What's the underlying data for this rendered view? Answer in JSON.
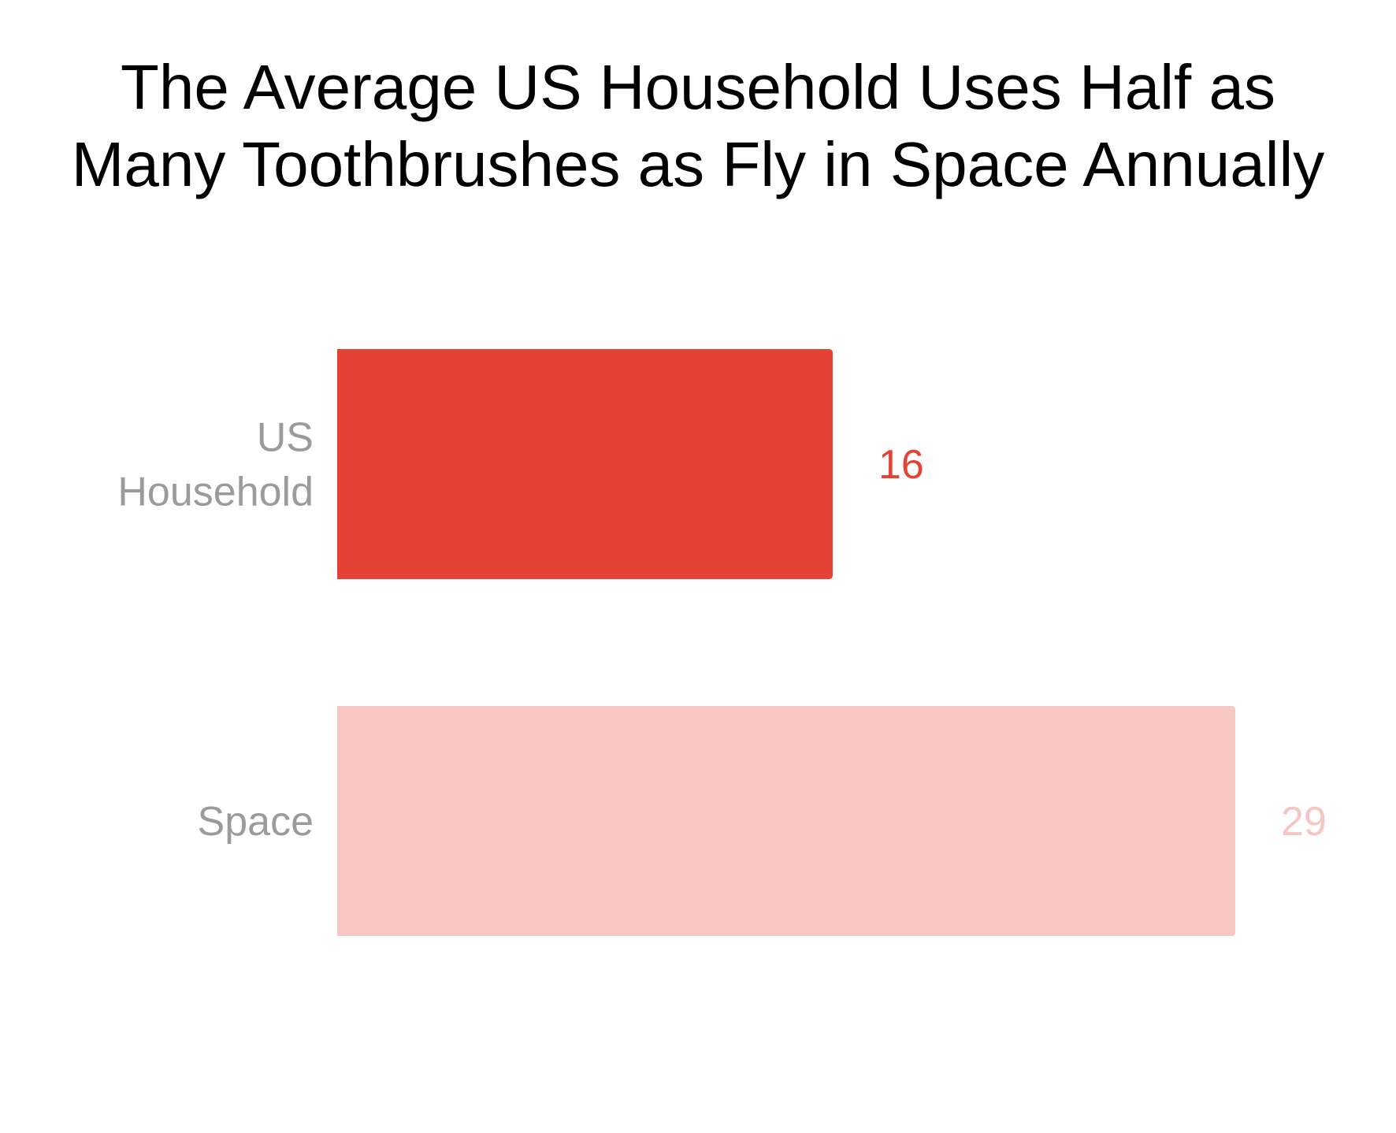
{
  "chart_data": {
    "type": "bar",
    "orientation": "horizontal",
    "title": "The Average US Household Uses Half as Many Toothbrushes as Fly in Space Annually",
    "title_lines": [
      "The Average US Household Uses Half as",
      "Many Toothbrushes as Fly in Space Annually"
    ],
    "categories": [
      "US Household",
      "Space"
    ],
    "category_label_lines": [
      [
        "US",
        "Household"
      ],
      [
        "Space"
      ]
    ],
    "values": [
      16,
      29
    ],
    "value_labels": [
      "16",
      "29"
    ],
    "xlim": [
      0,
      29
    ],
    "grid": false,
    "bar_colors": [
      "#e34234",
      "#f6c6c3"
    ],
    "label_colors": [
      "#e34234",
      "#f6c6c3"
    ]
  }
}
